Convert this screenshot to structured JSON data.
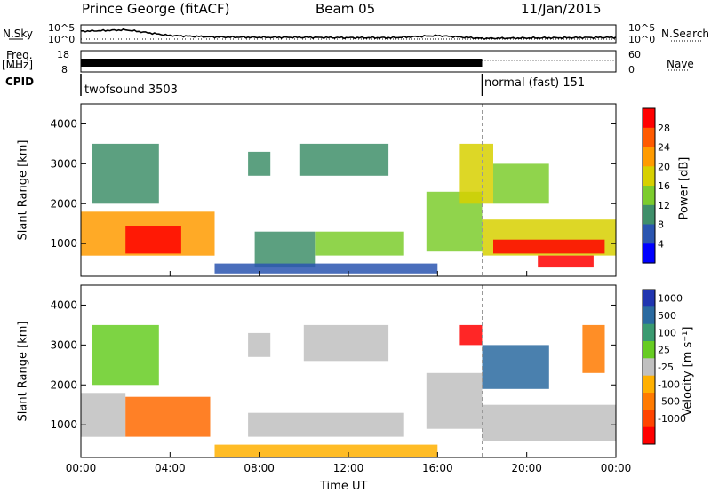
{
  "header": {
    "station": "Prince George (fitACF)",
    "beam": "Beam 05",
    "date": "11/Jan/2015"
  },
  "left_labels": {
    "nsky": "N.Sky",
    "freq_line1": "Freq.",
    "freq_line2": "[MHz]",
    "cpid": "CPID"
  },
  "right_labels": {
    "nsearch": "N.Search",
    "nave": "Nave"
  },
  "noise_axis": {
    "top": "10^5",
    "bottom": "10^0"
  },
  "freq_axis": {
    "top": "18",
    "bottom": "8"
  },
  "nave_axis": {
    "top": "60",
    "bottom": "0"
  },
  "cpid_segments": [
    {
      "label": "twofsound 3503",
      "start": "00:00",
      "end": "18:00"
    },
    {
      "label": "normal (fast) 151",
      "start": "18:00",
      "end": "00:00"
    }
  ],
  "x_axis_label": "Time UT",
  "colors": {
    "power": [
      "#0000ff",
      "#2a55b0",
      "#3f8f6a",
      "#7ccc2d",
      "#d7d000",
      "#ff9b00",
      "#ff5a00",
      "#ff0000"
    ],
    "velocity": [
      "#2035b0",
      "#2a6aa0",
      "#3a9a70",
      "#66cc22",
      "#c0c0c0",
      "#ffb000",
      "#ff7a00",
      "#ff4400",
      "#ff0000"
    ]
  },
  "chart_data": [
    {
      "type": "line",
      "title": "Noise",
      "x": [
        "00:00",
        "02:00",
        "04:00",
        "06:00",
        "08:00",
        "10:00",
        "12:00",
        "14:00",
        "16:00",
        "18:00",
        "20:00",
        "22:00",
        "00:00"
      ],
      "series": [
        {
          "name": "N.Sky",
          "values": [
            3.2,
            3.6,
            2.0,
            1.6,
            1.5,
            1.5,
            1.4,
            1.4,
            2.0,
            1.2,
            1.3,
            1.4,
            1.5
          ]
        },
        {
          "name": "N.Search",
          "values": [
            1.0,
            1.0,
            1.0,
            1.0,
            1.0,
            1.0,
            1.0,
            1.0,
            1.0,
            1.0,
            1.0,
            1.0,
            1.0
          ]
        }
      ],
      "ylim": [
        0,
        5
      ]
    },
    {
      "type": "line",
      "title": "Freq / Nave",
      "x": [
        "00:00",
        "18:00",
        "18:00",
        "00:00"
      ],
      "series": [
        {
          "name": "Freq.",
          "values": [
            13,
            13,
            13,
            13
          ]
        },
        {
          "name": "Nave",
          "values": [
            30,
            30,
            25,
            25
          ]
        }
      ]
    },
    {
      "type": "heatmap",
      "ylabel": "Slant Range [km]",
      "colorbar_label": "Power [dB]",
      "colorbar_ticks": [
        4,
        8,
        12,
        16,
        20,
        24,
        28
      ],
      "xlim": [
        "00:00",
        "24:00"
      ],
      "ylim": [
        180,
        4500
      ],
      "yticks": [
        1000,
        2000,
        3000,
        4000
      ],
      "xticks": [
        "00:00",
        "04:00",
        "08:00",
        "12:00",
        "16:00",
        "20:00",
        "00:00"
      ],
      "regions": [
        {
          "t0": 0.0,
          "t1": 6.0,
          "r0": 700,
          "r1": 1800,
          "value": 22
        },
        {
          "t0": 2.0,
          "t1": 4.5,
          "r0": 750,
          "r1": 1450,
          "value": 28
        },
        {
          "t0": 0.5,
          "t1": 3.5,
          "r0": 2000,
          "r1": 3500,
          "value": 8
        },
        {
          "t0": 7.8,
          "t1": 10.5,
          "r0": 400,
          "r1": 1300,
          "value": 10
        },
        {
          "t0": 10.5,
          "t1": 14.5,
          "r0": 700,
          "r1": 1300,
          "value": 12
        },
        {
          "t0": 9.8,
          "t1": 13.8,
          "r0": 2700,
          "r1": 3500,
          "value": 8
        },
        {
          "t0": 7.5,
          "t1": 8.5,
          "r0": 2700,
          "r1": 3300,
          "value": 10
        },
        {
          "t0": 6.0,
          "t1": 16.0,
          "r0": 250,
          "r1": 500,
          "value": 6
        },
        {
          "t0": 15.5,
          "t1": 18.0,
          "r0": 800,
          "r1": 2300,
          "value": 14
        },
        {
          "t0": 17.0,
          "t1": 18.5,
          "r0": 2000,
          "r1": 3500,
          "value": 18
        },
        {
          "t0": 18.0,
          "t1": 24.0,
          "r0": 700,
          "r1": 1600,
          "value": 16
        },
        {
          "t0": 18.5,
          "t1": 23.5,
          "r0": 750,
          "r1": 1100,
          "value": 28
        },
        {
          "t0": 20.5,
          "t1": 23.0,
          "r0": 400,
          "r1": 700,
          "value": 28
        },
        {
          "t0": 18.5,
          "t1": 21.0,
          "r0": 2000,
          "r1": 3000,
          "value": 14
        }
      ]
    },
    {
      "type": "heatmap",
      "ylabel": "Slant Range [km]",
      "colorbar_label": "Velocity [m s⁻¹]",
      "colorbar_ticks": [
        1000,
        500,
        100,
        25,
        -25,
        -100,
        -500,
        -1000
      ],
      "xlim": [
        "00:00",
        "24:00"
      ],
      "ylim": [
        180,
        4500
      ],
      "yticks": [
        1000,
        2000,
        3000,
        4000
      ],
      "xticks": [
        "00:00",
        "04:00",
        "08:00",
        "12:00",
        "16:00",
        "20:00",
        "00:00"
      ],
      "x_axis_label": "Time UT",
      "regions": [
        {
          "t0": 0.0,
          "t1": 2.0,
          "r0": 700,
          "r1": 1800,
          "value": 0
        },
        {
          "t0": 2.0,
          "t1": 5.8,
          "r0": 700,
          "r1": 1700,
          "value": -300
        },
        {
          "t0": 0.5,
          "t1": 3.5,
          "r0": 2000,
          "r1": 3500,
          "value": 100
        },
        {
          "t0": 6.0,
          "t1": 16.0,
          "r0": 200,
          "r1": 500,
          "value": -100
        },
        {
          "t0": 7.5,
          "t1": 14.5,
          "r0": 700,
          "r1": 1300,
          "value": 0
        },
        {
          "t0": 7.5,
          "t1": 8.5,
          "r0": 2700,
          "r1": 3300,
          "value": 0
        },
        {
          "t0": 10.0,
          "t1": 13.8,
          "r0": 2600,
          "r1": 3500,
          "value": 0
        },
        {
          "t0": 15.5,
          "t1": 18.0,
          "r0": 900,
          "r1": 2300,
          "value": 0
        },
        {
          "t0": 17.0,
          "t1": 18.0,
          "r0": 3000,
          "r1": 3500,
          "value": -1000
        },
        {
          "t0": 18.0,
          "t1": 24.0,
          "r0": 600,
          "r1": 1500,
          "value": 0
        },
        {
          "t0": 18.0,
          "t1": 21.0,
          "r0": 1900,
          "r1": 3000,
          "value": 300
        },
        {
          "t0": 22.5,
          "t1": 23.5,
          "r0": 2300,
          "r1": 3500,
          "value": -200
        }
      ]
    }
  ]
}
